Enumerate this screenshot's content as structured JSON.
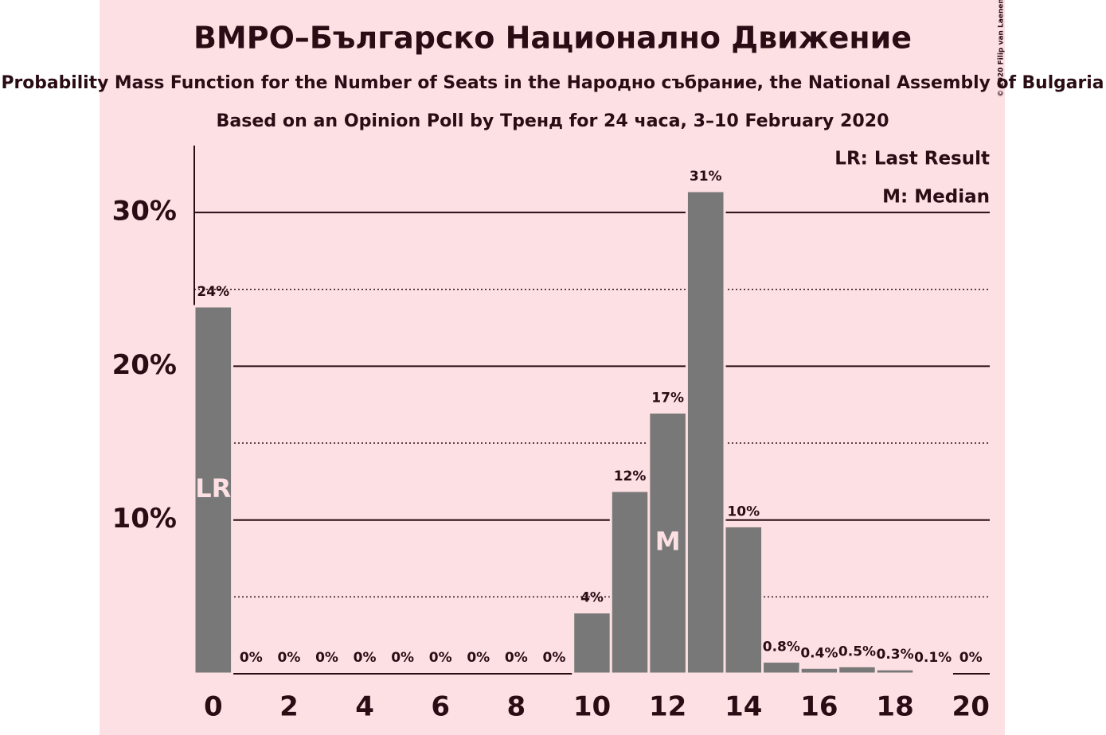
{
  "chart_data": {
    "type": "bar",
    "title": "ВМРО–Българско Национално Движение",
    "subtitle": "Probability Mass Function for the Number of Seats in the Народно събрание, the National Assembly of Bulgaria",
    "caption": "Based on an Opinion Poll by Тренд for 24 часа, 3–10 February 2020",
    "copyright": "© 2020 Filip van Laenen",
    "legend": [
      "LR: Last Result",
      "M: Median"
    ],
    "legend_position": "top-right",
    "x": [
      0,
      1,
      2,
      3,
      4,
      5,
      6,
      7,
      8,
      9,
      10,
      11,
      12,
      13,
      14,
      15,
      16,
      17,
      18,
      19,
      20
    ],
    "values": [
      23.9,
      0,
      0,
      0,
      0,
      0,
      0,
      0,
      0,
      0,
      4.0,
      11.9,
      17.0,
      31.4,
      9.6,
      0.8,
      0.4,
      0.5,
      0.3,
      0.1,
      0
    ],
    "value_labels": [
      "24%",
      "0%",
      "0%",
      "0%",
      "0%",
      "0%",
      "0%",
      "0%",
      "0%",
      "0%",
      "4%",
      "12%",
      "17%",
      "31%",
      "10%",
      "0.8%",
      "0.4%",
      "0.5%",
      "0.3%",
      "0.1%",
      "0%"
    ],
    "color": "#787878",
    "annotations": [
      {
        "label": "LR",
        "x": 0
      },
      {
        "label": "M",
        "x": 12
      }
    ],
    "xlim": [
      -0.5,
      20.5
    ],
    "xticks": [
      0,
      2,
      4,
      6,
      8,
      10,
      12,
      14,
      16,
      18,
      20
    ],
    "ylim": [
      0,
      34.35
    ],
    "yticks": [
      {
        "value": 10,
        "label": "10%"
      },
      {
        "value": 20,
        "label": "20%"
      },
      {
        "value": 30,
        "label": "30%"
      }
    ],
    "minor_gridlines": [
      5,
      15,
      25
    ],
    "grid": true
  }
}
